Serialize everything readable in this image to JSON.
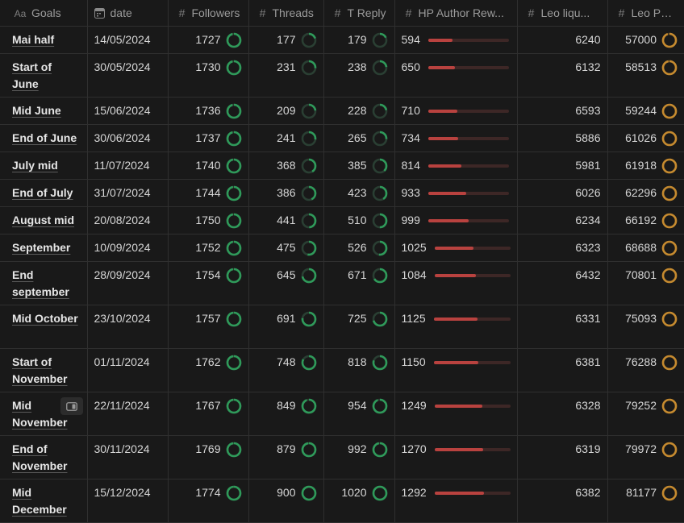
{
  "colors": {
    "ring_green": "#2f9a5a",
    "ring_orange": "#c58a2f",
    "bar_red": "#b9423f"
  },
  "headers": {
    "goals": "Goals",
    "date": "date",
    "followers": "Followers",
    "threads": "Threads",
    "treply": "T Reply",
    "hp": "HP Author Rew...",
    "leo_liquid": "Leo liqu...",
    "leo_power": "Leo Power"
  },
  "rows": [
    {
      "goal": "Mai half",
      "date": "14/05/2024",
      "followers": "1727",
      "threads": "177",
      "treply": "179",
      "hp": "594",
      "leo_liquid": "6240",
      "leo_power": "57000"
    },
    {
      "goal": "Start of June",
      "date": "30/05/2024",
      "followers": "1730",
      "threads": "231",
      "treply": "238",
      "hp": "650",
      "leo_liquid": "6132",
      "leo_power": "58513"
    },
    {
      "goal": "Mid June",
      "date": "15/06/2024",
      "followers": "1736",
      "threads": "209",
      "treply": "228",
      "hp": "710",
      "leo_liquid": "6593",
      "leo_power": "59244"
    },
    {
      "goal": "End of June",
      "date": "30/06/2024",
      "followers": "1737",
      "threads": "241",
      "treply": "265",
      "hp": "734",
      "leo_liquid": "5886",
      "leo_power": "61026"
    },
    {
      "goal": "July mid",
      "date": "11/07/2024",
      "followers": "1740",
      "threads": "368",
      "treply": "385",
      "hp": "814",
      "leo_liquid": "5981",
      "leo_power": "61918"
    },
    {
      "goal": "End of July",
      "date": "31/07/2024",
      "followers": "1744",
      "threads": "386",
      "treply": "423",
      "hp": "933",
      "leo_liquid": "6026",
      "leo_power": "62296"
    },
    {
      "goal": "August mid",
      "date": "20/08/2024",
      "followers": "1750",
      "threads": "441",
      "treply": "510",
      "hp": "999",
      "leo_liquid": "6234",
      "leo_power": "66192"
    },
    {
      "goal": "September",
      "date": "10/09/2024",
      "followers": "1752",
      "threads": "475",
      "treply": "526",
      "hp": "1025",
      "leo_liquid": "6323",
      "leo_power": "68688"
    },
    {
      "goal": "End september",
      "date": "28/09/2024",
      "followers": "1754",
      "threads": "645",
      "treply": "671",
      "hp": "1084",
      "leo_liquid": "6432",
      "leo_power": "70801"
    },
    {
      "goal": "Mid October",
      "date": "23/10/2024",
      "followers": "1757",
      "threads": "691",
      "treply": "725",
      "hp": "1125",
      "leo_liquid": "6331",
      "leo_power": "75093"
    },
    {
      "goal": "Start of November",
      "date": "01/11/2024",
      "followers": "1762",
      "threads": "748",
      "treply": "818",
      "hp": "1150",
      "leo_liquid": "6381",
      "leo_power": "76288"
    },
    {
      "goal": "Mid November",
      "date": "22/11/2024",
      "followers": "1767",
      "threads": "849",
      "treply": "954",
      "hp": "1249",
      "leo_liquid": "6328",
      "leo_power": "79252"
    },
    {
      "goal": "End of November",
      "date": "30/11/2024",
      "followers": "1769",
      "threads": "879",
      "treply": "992",
      "hp": "1270",
      "leo_liquid": "6319",
      "leo_power": "79972"
    },
    {
      "goal": "Mid December",
      "date": "15/12/2024",
      "followers": "1774",
      "threads": "900",
      "treply": "1020",
      "hp": "1292",
      "leo_liquid": "6382",
      "leo_power": "81177"
    }
  ],
  "progress": {
    "followers_pct": [
      96,
      96,
      96,
      96,
      97,
      97,
      97,
      97,
      97,
      98,
      98,
      98,
      98,
      99
    ],
    "threads_pct": [
      20,
      26,
      23,
      27,
      41,
      43,
      49,
      53,
      72,
      77,
      83,
      94,
      98,
      100
    ],
    "treply_pct": [
      18,
      23,
      22,
      26,
      38,
      41,
      50,
      52,
      66,
      71,
      80,
      94,
      97,
      100
    ],
    "hp_pct": [
      30,
      33,
      36,
      37,
      41,
      47,
      50,
      51,
      55,
      57,
      58,
      63,
      64,
      65
    ],
    "leo_power_pct": [
      95,
      97,
      99,
      99,
      99,
      99,
      99,
      99,
      99,
      99,
      99,
      99,
      99,
      99
    ]
  },
  "wide_rows": [
    1,
    8,
    9,
    10,
    11,
    12,
    13
  ],
  "open_button_row": 11
}
